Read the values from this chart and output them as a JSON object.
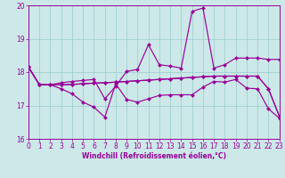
{
  "bg_color": "#cce8e8",
  "grid_color": "#99cccc",
  "line_color": "#990099",
  "xlabel": "Windchill (Refroidissement éolien,°C)",
  "xlim": [
    0,
    23
  ],
  "ylim": [
    16,
    20
  ],
  "xticks": [
    0,
    1,
    2,
    3,
    4,
    5,
    6,
    7,
    8,
    9,
    10,
    11,
    12,
    13,
    14,
    15,
    16,
    17,
    18,
    19,
    20,
    21,
    22,
    23
  ],
  "yticks": [
    16,
    17,
    18,
    19,
    20
  ],
  "line1": [
    18.15,
    17.62,
    17.62,
    17.62,
    17.63,
    17.65,
    17.67,
    17.68,
    17.7,
    17.72,
    17.74,
    17.76,
    17.78,
    17.8,
    17.82,
    17.84,
    17.86,
    17.88,
    17.88,
    17.88,
    17.88,
    17.88,
    17.5,
    16.68
  ],
  "line2": [
    18.15,
    17.62,
    17.62,
    17.62,
    17.63,
    17.65,
    17.67,
    17.68,
    17.7,
    17.72,
    17.74,
    17.76,
    17.78,
    17.8,
    17.82,
    17.84,
    17.86,
    17.88,
    17.88,
    17.88,
    17.88,
    17.88,
    17.5,
    16.68
  ],
  "line3": [
    18.15,
    17.62,
    17.62,
    17.5,
    17.35,
    17.1,
    16.95,
    16.65,
    17.65,
    17.18,
    17.1,
    17.2,
    17.3,
    17.32,
    17.32,
    17.32,
    17.55,
    17.72,
    17.7,
    17.78,
    17.52,
    17.5,
    16.9,
    16.62
  ],
  "line4": [
    18.15,
    17.62,
    17.62,
    17.68,
    17.72,
    17.75,
    17.78,
    17.2,
    17.58,
    18.02,
    18.08,
    18.82,
    18.22,
    18.18,
    18.12,
    19.82,
    19.92,
    18.12,
    18.22,
    18.42,
    18.42,
    18.42,
    18.38,
    18.38
  ]
}
